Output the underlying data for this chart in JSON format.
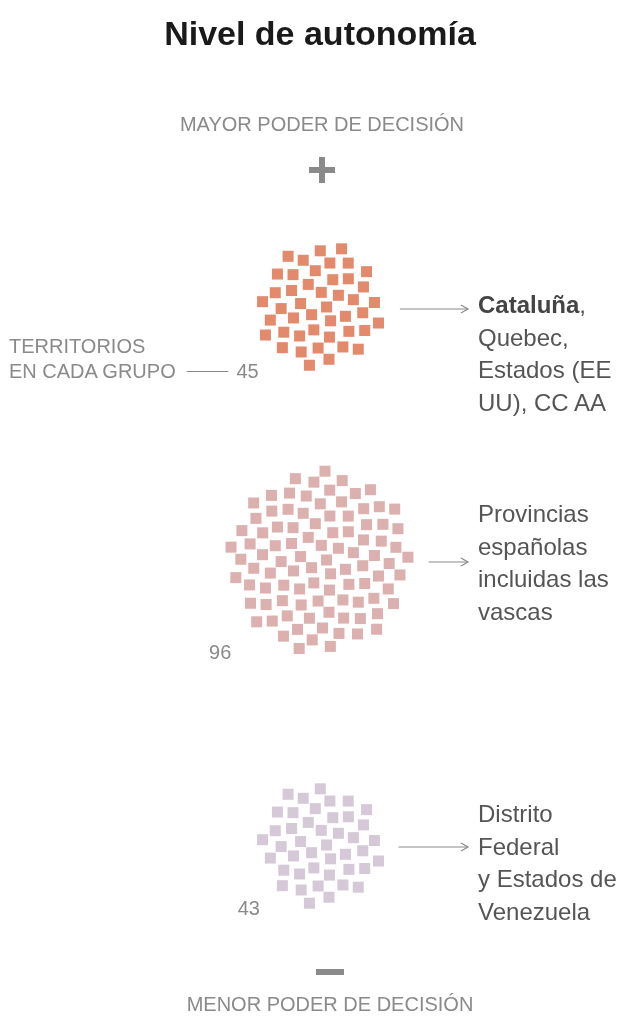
{
  "chart_data": {
    "type": "other",
    "title": "Nivel de autonomía",
    "categories": [
      "Cataluña, Quebec, Estados (EE UU), CC AA",
      "Provincias españolas incluidas las vascas",
      "Distrito Federal y Estados de Venezuela"
    ],
    "values": [
      45,
      96,
      43
    ],
    "colors": [
      "#e3896c",
      "#dbb0ae",
      "#d5c9d7"
    ],
    "data_labels": true,
    "annotations": [
      "MAYOR PODER DE DECISIÓN",
      "TERRITORIOS EN CADA GRUPO",
      "MENOR PODER DE DECISIÓN"
    ]
  }
}
